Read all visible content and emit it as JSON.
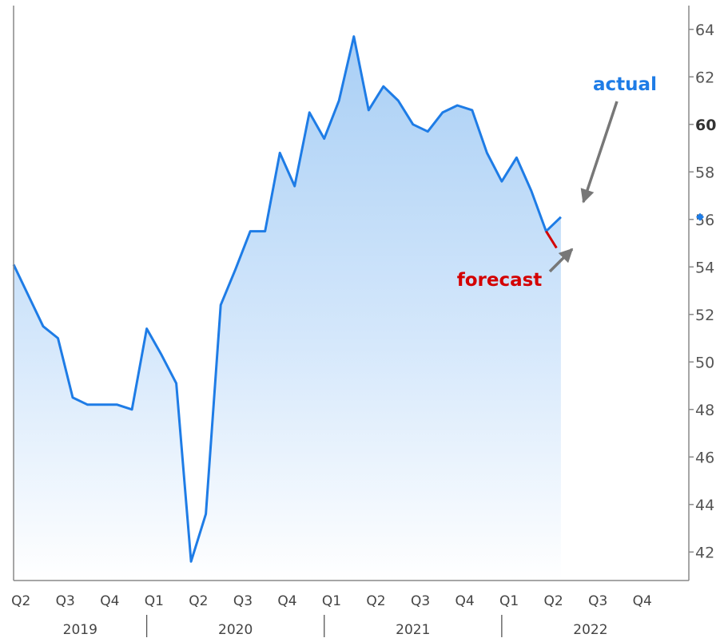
{
  "chart_data": {
    "type": "area",
    "title": "",
    "xlabel": "",
    "ylabel": "",
    "ylim": [
      40.8,
      65
    ],
    "y_ticks": [
      42,
      44,
      46,
      48,
      50,
      52,
      54,
      56,
      58,
      60,
      62,
      64
    ],
    "y_tick_labels": [
      "42",
      "44",
      "46",
      "48",
      "50",
      "52",
      "54",
      "56",
      "58",
      "60",
      "62",
      "64"
    ],
    "highlight_tick": "60",
    "grid": false,
    "x_range": [
      0,
      45
    ],
    "quarter_labels": [
      "Q2",
      "Q3",
      "Q4",
      "Q1",
      "Q2",
      "Q3",
      "Q4",
      "Q1",
      "Q2",
      "Q3",
      "Q4",
      "Q1",
      "Q2",
      "Q3",
      "Q4"
    ],
    "quarter_positions": [
      0.5,
      3.5,
      6.5,
      9.5,
      12.5,
      15.5,
      18.5,
      21.5,
      24.5,
      27.5,
      30.5,
      33.5,
      36.5,
      39.5,
      42.5
    ],
    "years": [
      {
        "label": "2019",
        "start": 0,
        "end": 9
      },
      {
        "label": "2020",
        "start": 9,
        "end": 21
      },
      {
        "label": "2021",
        "start": 21,
        "end": 33
      },
      {
        "label": "2022",
        "start": 33,
        "end": 45
      }
    ],
    "series": [
      {
        "name": "actual",
        "color": "#1e7ce6",
        "x": [
          0,
          1,
          2,
          3,
          4,
          5,
          6,
          7,
          8,
          9,
          10,
          11,
          12,
          13,
          14,
          15,
          16,
          17,
          18,
          19,
          20,
          21,
          22,
          23,
          24,
          25,
          26,
          27,
          28,
          29,
          30,
          31,
          32,
          33,
          34,
          35,
          36,
          37
        ],
        "values": [
          54.1,
          52.8,
          51.5,
          51.0,
          48.5,
          48.2,
          48.2,
          48.2,
          48.0,
          51.4,
          50.3,
          49.1,
          41.6,
          43.6,
          52.4,
          53.9,
          55.5,
          55.5,
          58.8,
          57.4,
          60.5,
          59.4,
          61.0,
          63.7,
          60.6,
          61.6,
          61.0,
          60.0,
          59.7,
          60.5,
          60.8,
          60.6,
          58.8,
          57.6,
          58.6,
          57.2,
          55.5,
          56.1
        ]
      },
      {
        "name": "forecast",
        "color": "#d40000",
        "x": [
          36,
          36.7
        ],
        "values": [
          55.5,
          54.8
        ]
      }
    ],
    "last_value_marker": 56.1,
    "annotations": [
      {
        "text": "actual",
        "color": "#1e7ce6"
      },
      {
        "text": "forecast",
        "color": "#d40000"
      }
    ]
  }
}
